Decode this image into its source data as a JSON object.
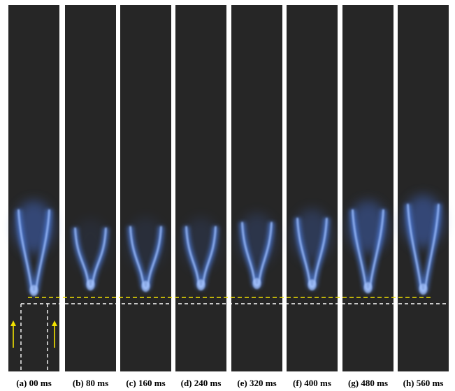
{
  "panels": [
    {
      "label": "(a) 00 ms"
    },
    {
      "label": "(b) 80 ms"
    },
    {
      "label": "(c) 160 ms"
    },
    {
      "label": "(d) 240 ms"
    },
    {
      "label": "(e) 320 ms"
    },
    {
      "label": "(f) 400 ms"
    },
    {
      "label": "(g) 480 ms"
    },
    {
      "label": "(h) 560 ms"
    }
  ]
}
